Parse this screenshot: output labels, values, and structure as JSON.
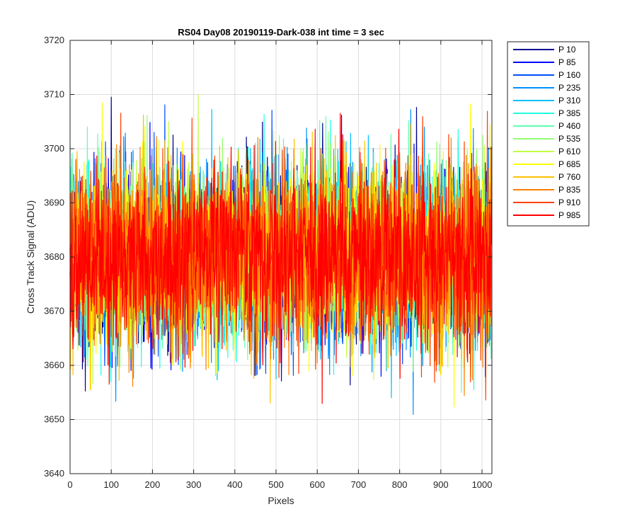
{
  "chart_data": {
    "type": "line",
    "title": "RS04 Day08 20190119-Dark-038 int time = 3 sec",
    "xlabel": "Pixels",
    "ylabel": "Cross Track Signal (ADU)",
    "xlim": [
      0,
      1024
    ],
    "ylim": [
      3640,
      3720
    ],
    "xticks": [
      0,
      100,
      200,
      300,
      400,
      500,
      600,
      700,
      800,
      900,
      1000
    ],
    "yticks": [
      3640,
      3650,
      3660,
      3670,
      3680,
      3690,
      3700,
      3710,
      3720
    ],
    "grid": true,
    "legend_position": "outside-top-right",
    "noise": {
      "mean": 3680,
      "std": 8,
      "min": 3649,
      "max": 3711,
      "points_per_series": 1024
    },
    "series": [
      {
        "name": "P 10",
        "color": "#00008f"
      },
      {
        "name": "P 85",
        "color": "#0000ff"
      },
      {
        "name": "P 160",
        "color": "#0050ff"
      },
      {
        "name": "P 235",
        "color": "#0090ff"
      },
      {
        "name": "P 310",
        "color": "#00c0ff"
      },
      {
        "name": "P 385",
        "color": "#20ffe0"
      },
      {
        "name": "P 460",
        "color": "#60ffb0"
      },
      {
        "name": "P 535",
        "color": "#90ff70"
      },
      {
        "name": "P 610",
        "color": "#c0ff40"
      },
      {
        "name": "P 685",
        "color": "#ffff00"
      },
      {
        "name": "P 760",
        "color": "#ffc000"
      },
      {
        "name": "P 835",
        "color": "#ff8000"
      },
      {
        "name": "P 910",
        "color": "#ff4000"
      },
      {
        "name": "P 985",
        "color": "#ff0000"
      }
    ]
  }
}
